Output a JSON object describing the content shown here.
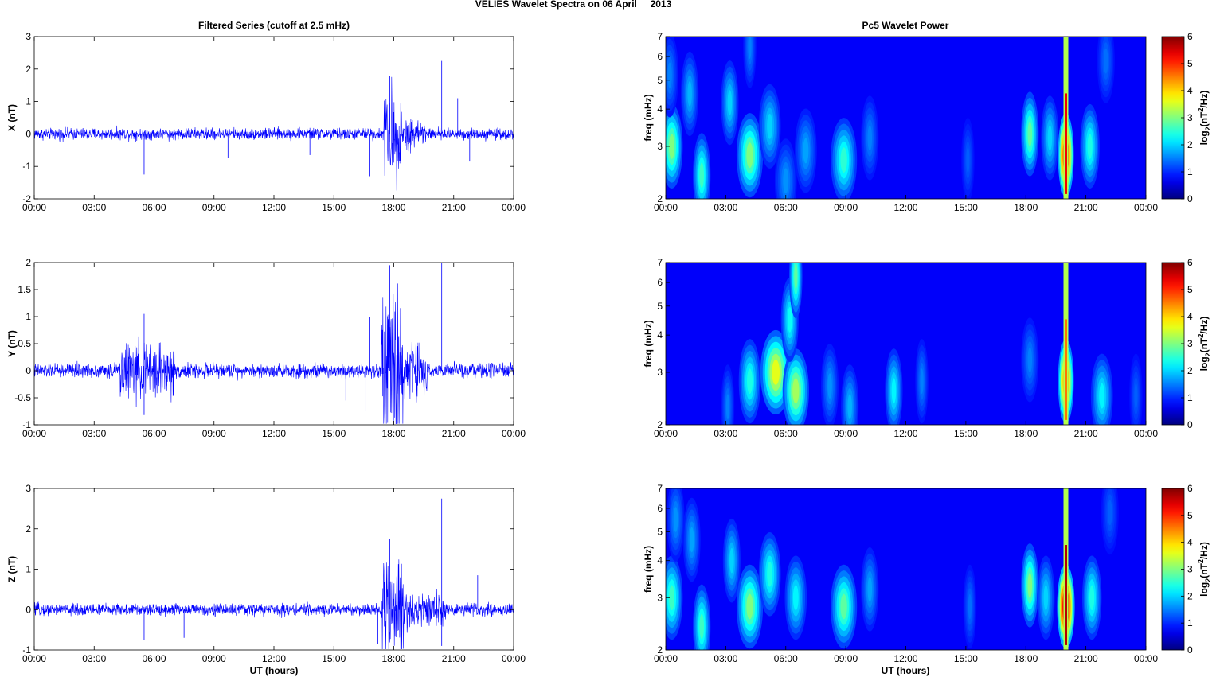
{
  "figure_title": "VELIES Wavelet Spectra on 06 April     2013",
  "left_column_title": "Filtered Series (cutoff at 2.5 mHz)",
  "right_column_title": "Pc5 Wavelet Power",
  "colors": {
    "trace": "#0000ff",
    "axes": "#000000",
    "background": "#ffffff"
  },
  "x_tick_labels": [
    "00:00",
    "03:00",
    "06:00",
    "09:00",
    "12:00",
    "15:00",
    "18:00",
    "21:00",
    "00:00"
  ],
  "x_axis_label": "UT (hours)",
  "spectrogram": {
    "ylabel": "freq (mHz)",
    "ytick_labels": [
      "2",
      "3",
      "4",
      "5",
      "6",
      "7"
    ],
    "colorbar_ticks": [
      "0",
      "1",
      "2",
      "3",
      "4",
      "5",
      "6"
    ],
    "colorbar_label_base": "log",
    "colorbar_label_sub": "2",
    "colorbar_label_mid": "(nT",
    "colorbar_label_sup": "2",
    "colorbar_label_end": "/Hz)",
    "colormap": "jet"
  },
  "chart_data": [
    {
      "type": "line",
      "title": "Filtered Series (cutoff at 2.5 mHz)",
      "ylabel": "X (nT)",
      "xlabel": "",
      "xlim_hours": [
        0,
        24
      ],
      "ylim": [
        -2,
        3
      ],
      "ytick_labels": [
        "-2",
        "-1",
        "0",
        "1",
        "2",
        "3"
      ],
      "xtick_labels": [
        "00:00",
        "03:00",
        "06:00",
        "09:00",
        "12:00",
        "15:00",
        "18:00",
        "21:00",
        "00:00"
      ],
      "baseline_noise": 0.12,
      "bursts": [
        {
          "t": [
            17.5,
            18.4
          ],
          "amp": 0.9
        },
        {
          "t": [
            18.4,
            19.6
          ],
          "amp": 0.35
        }
      ],
      "spikes": [
        {
          "t": 5.5,
          "v": -1.25
        },
        {
          "t": 16.8,
          "v": -1.3
        },
        {
          "t": 17.8,
          "v": 1.8
        },
        {
          "t": 20.4,
          "v": 2.25
        },
        {
          "t": 21.8,
          "v": -0.85
        },
        {
          "t": 9.7,
          "v": -0.75
        },
        {
          "t": 13.8,
          "v": -0.65
        },
        {
          "t": 21.2,
          "v": 1.1
        }
      ]
    },
    {
      "type": "line",
      "ylabel": "Y (nT)",
      "xlabel": "",
      "xlim_hours": [
        0,
        24
      ],
      "ylim": [
        -1,
        2
      ],
      "ytick_labels": [
        "-1",
        "-0.5",
        "0",
        "0.5",
        "1",
        "1.5",
        "2"
      ],
      "xtick_labels": [
        "00:00",
        "03:00",
        "06:00",
        "09:00",
        "12:00",
        "15:00",
        "18:00",
        "21:00",
        "00:00"
      ],
      "baseline_noise": 0.09,
      "bursts": [
        {
          "t": [
            4.3,
            7.0
          ],
          "amp": 0.35
        },
        {
          "t": [
            17.4,
            18.5
          ],
          "amp": 1.1
        },
        {
          "t": [
            18.5,
            19.7
          ],
          "amp": 0.35
        }
      ],
      "spikes": [
        {
          "t": 5.5,
          "v": 1.05
        },
        {
          "t": 5.5,
          "v": -0.82
        },
        {
          "t": 6.6,
          "v": 0.85
        },
        {
          "t": 16.6,
          "v": -0.75
        },
        {
          "t": 17.8,
          "v": 1.95
        },
        {
          "t": 20.4,
          "v": 2.0
        },
        {
          "t": 16.8,
          "v": 1.0
        },
        {
          "t": 15.6,
          "v": -0.55
        }
      ]
    },
    {
      "type": "line",
      "ylabel": "Z (nT)",
      "xlabel": "UT (hours)",
      "xlim_hours": [
        0,
        24
      ],
      "ylim": [
        -1,
        3
      ],
      "ytick_labels": [
        "-1",
        "0",
        "1",
        "2",
        "3"
      ],
      "xtick_labels": [
        "00:00",
        "03:00",
        "06:00",
        "09:00",
        "12:00",
        "15:00",
        "18:00",
        "21:00",
        "00:00"
      ],
      "baseline_noise": 0.1,
      "bursts": [
        {
          "t": [
            17.4,
            18.5
          ],
          "amp": 0.8
        },
        {
          "t": [
            18.5,
            20.6
          ],
          "amp": 0.3
        }
      ],
      "spikes": [
        {
          "t": 5.5,
          "v": -0.75
        },
        {
          "t": 7.5,
          "v": -0.7
        },
        {
          "t": 17.8,
          "v": 1.75
        },
        {
          "t": 20.4,
          "v": 2.75
        },
        {
          "t": 20.4,
          "v": -0.9
        },
        {
          "t": 17.2,
          "v": -0.85
        },
        {
          "t": 22.2,
          "v": 0.85
        }
      ]
    },
    {
      "type": "heatmap",
      "title": "Pc5 Wavelet Power",
      "ylabel": "freq (mHz)",
      "xlim_hours": [
        0,
        24
      ],
      "ylim_mHz": [
        2,
        7
      ],
      "clim": [
        0,
        6
      ],
      "blobs": [
        {
          "t": 0.3,
          "f": 3.0,
          "amp": 3.0,
          "w": 0.25
        },
        {
          "t": 0.2,
          "f": 5.2,
          "amp": 1.5,
          "w": 0.2
        },
        {
          "t": 1.2,
          "f": 4.5,
          "amp": 1.8,
          "w": 0.2
        },
        {
          "t": 1.8,
          "f": 2.4,
          "amp": 2.6,
          "w": 0.2
        },
        {
          "t": 3.2,
          "f": 4.2,
          "amp": 2.0,
          "w": 0.2
        },
        {
          "t": 4.2,
          "f": 2.8,
          "amp": 3.0,
          "w": 0.3
        },
        {
          "t": 4.2,
          "f": 6.5,
          "amp": 1.5,
          "w": 0.15
        },
        {
          "t": 5.2,
          "f": 3.5,
          "amp": 2.0,
          "w": 0.25
        },
        {
          "t": 6.0,
          "f": 2.3,
          "amp": 1.6,
          "w": 0.25
        },
        {
          "t": 7.0,
          "f": 2.9,
          "amp": 1.7,
          "w": 0.25
        },
        {
          "t": 8.9,
          "f": 2.7,
          "amp": 2.5,
          "w": 0.3
        },
        {
          "t": 10.2,
          "f": 3.2,
          "amp": 1.5,
          "w": 0.2
        },
        {
          "t": 15.1,
          "f": 2.7,
          "amp": 1.3,
          "w": 0.15
        },
        {
          "t": 18.2,
          "f": 3.3,
          "amp": 2.8,
          "w": 0.2
        },
        {
          "t": 19.2,
          "f": 3.2,
          "amp": 2.0,
          "w": 0.2
        },
        {
          "t": 20.0,
          "f": 2.8,
          "amp": 5.6,
          "w": 0.18
        },
        {
          "t": 21.2,
          "f": 3.0,
          "amp": 2.4,
          "w": 0.22
        },
        {
          "t": 22.0,
          "f": 5.8,
          "amp": 1.4,
          "w": 0.2
        }
      ]
    },
    {
      "type": "heatmap",
      "ylabel": "freq (mHz)",
      "xlim_hours": [
        0,
        24
      ],
      "ylim_mHz": [
        2,
        7
      ],
      "clim": [
        0,
        6
      ],
      "blobs": [
        {
          "t": 3.1,
          "f": 2.3,
          "amp": 1.5,
          "w": 0.15
        },
        {
          "t": 4.2,
          "f": 2.8,
          "amp": 2.4,
          "w": 0.25
        },
        {
          "t": 5.5,
          "f": 3.0,
          "amp": 3.6,
          "w": 0.35
        },
        {
          "t": 6.5,
          "f": 2.6,
          "amp": 3.2,
          "w": 0.3
        },
        {
          "t": 6.2,
          "f": 4.5,
          "amp": 2.3,
          "w": 0.2
        },
        {
          "t": 6.5,
          "f": 6.3,
          "amp": 2.8,
          "w": 0.15
        },
        {
          "t": 8.2,
          "f": 2.7,
          "amp": 1.6,
          "w": 0.2
        },
        {
          "t": 9.2,
          "f": 2.3,
          "amp": 1.8,
          "w": 0.2
        },
        {
          "t": 11.4,
          "f": 2.6,
          "amp": 2.2,
          "w": 0.2
        },
        {
          "t": 12.8,
          "f": 2.8,
          "amp": 1.5,
          "w": 0.15
        },
        {
          "t": 18.2,
          "f": 3.3,
          "amp": 1.5,
          "w": 0.2
        },
        {
          "t": 20.0,
          "f": 2.8,
          "amp": 4.8,
          "w": 0.18
        },
        {
          "t": 21.8,
          "f": 2.5,
          "amp": 2.2,
          "w": 0.25
        },
        {
          "t": 23.5,
          "f": 2.5,
          "amp": 1.3,
          "w": 0.15
        }
      ]
    },
    {
      "type": "heatmap",
      "ylabel": "freq (mHz)",
      "xlabel": "UT (hours)",
      "xlim_hours": [
        0,
        24
      ],
      "ylim_mHz": [
        2,
        7
      ],
      "clim": [
        0,
        6
      ],
      "blobs": [
        {
          "t": 0.3,
          "f": 3.0,
          "amp": 2.6,
          "w": 0.25
        },
        {
          "t": 0.5,
          "f": 5.5,
          "amp": 1.6,
          "w": 0.2
        },
        {
          "t": 1.3,
          "f": 4.7,
          "amp": 1.7,
          "w": 0.2
        },
        {
          "t": 1.8,
          "f": 2.4,
          "amp": 2.6,
          "w": 0.2
        },
        {
          "t": 3.3,
          "f": 4.0,
          "amp": 2.0,
          "w": 0.2
        },
        {
          "t": 4.2,
          "f": 2.8,
          "amp": 3.0,
          "w": 0.3
        },
        {
          "t": 5.2,
          "f": 3.6,
          "amp": 2.4,
          "w": 0.25
        },
        {
          "t": 6.5,
          "f": 3.0,
          "amp": 2.2,
          "w": 0.25
        },
        {
          "t": 8.9,
          "f": 2.8,
          "amp": 2.8,
          "w": 0.3
        },
        {
          "t": 10.2,
          "f": 3.2,
          "amp": 1.7,
          "w": 0.2
        },
        {
          "t": 15.2,
          "f": 2.8,
          "amp": 1.4,
          "w": 0.15
        },
        {
          "t": 18.2,
          "f": 3.3,
          "amp": 3.0,
          "w": 0.2
        },
        {
          "t": 19.0,
          "f": 3.0,
          "amp": 2.0,
          "w": 0.2
        },
        {
          "t": 20.0,
          "f": 2.8,
          "amp": 6.0,
          "w": 0.2
        },
        {
          "t": 21.3,
          "f": 3.0,
          "amp": 2.4,
          "w": 0.22
        },
        {
          "t": 22.2,
          "f": 5.8,
          "amp": 1.3,
          "w": 0.2
        }
      ]
    }
  ]
}
